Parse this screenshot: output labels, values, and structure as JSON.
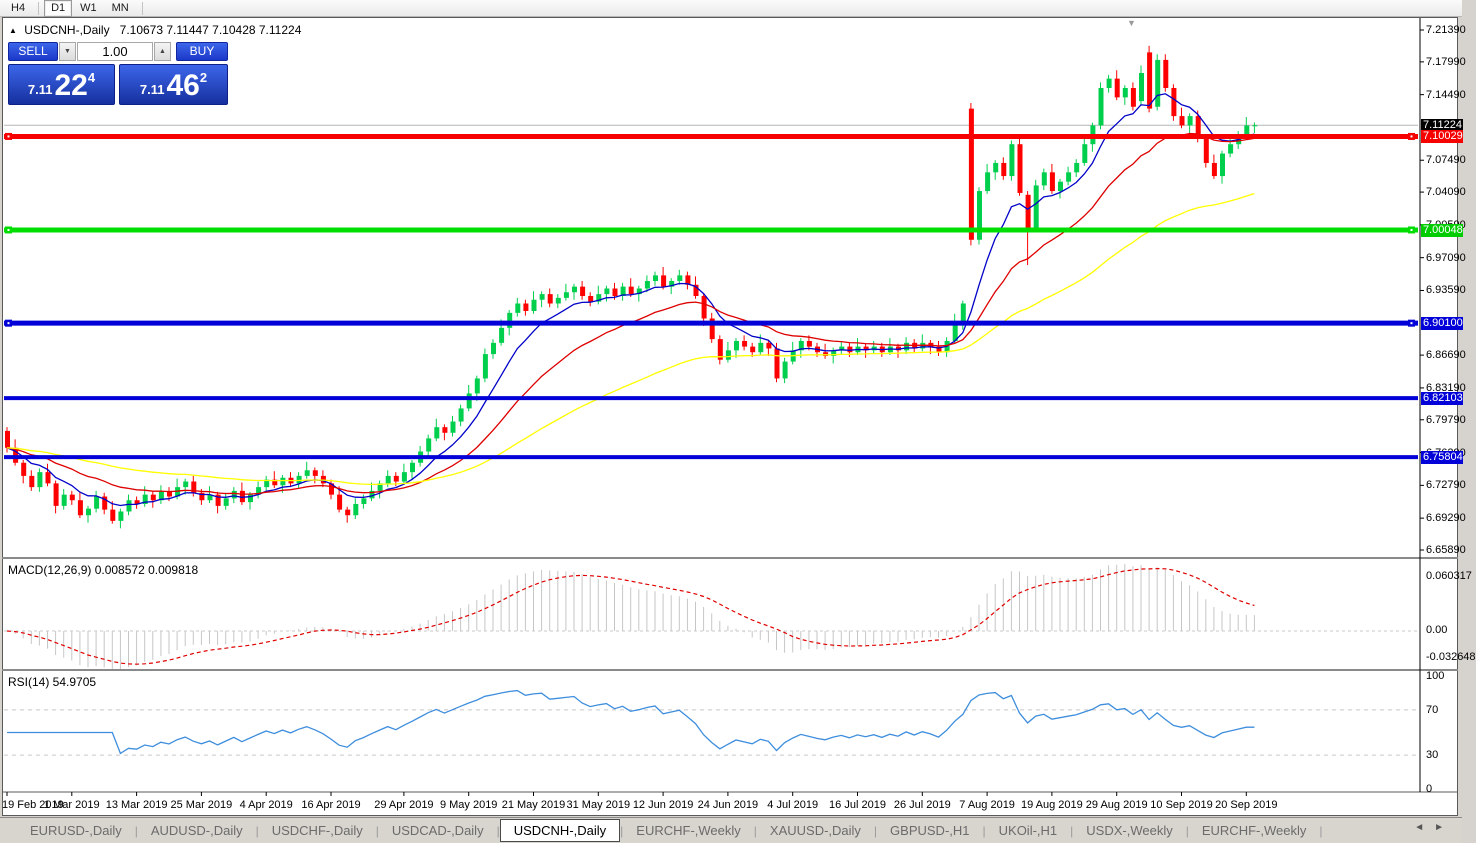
{
  "toolbar": {
    "timeframes": [
      "H4",
      "D1",
      "W1",
      "MN"
    ],
    "active_timeframe": "D1"
  },
  "icons": {
    "collapse_panel": "▲",
    "chart_shift_marker": "▼",
    "spinner_down": "▼",
    "spinner_up": "▲",
    "tab_scroll_left": "◄",
    "tab_scroll_right": "►"
  },
  "chart_title": {
    "symbol": "USDCNH-,Daily",
    "ohlc": "7.10673 7.11447 7.10428 7.11224"
  },
  "one_click": {
    "sell_label": "SELL",
    "buy_label": "BUY",
    "volume": "1.00",
    "sell_price": {
      "small": "7.11",
      "big": "22",
      "sup": "4"
    },
    "buy_price": {
      "small": "7.11",
      "big": "46",
      "sup": "2"
    }
  },
  "chart_data": {
    "type": "candlestick",
    "symbol": "USDCNH-",
    "timeframe": "Daily",
    "current_bar": {
      "open": "7.10673",
      "high": "7.11447",
      "low": "7.10428",
      "close": "7.11224"
    },
    "ylim": [
      6.6589,
      7.2139
    ],
    "bull_color": "#00cf4e",
    "bear_color": "#fe0000",
    "first_open": 6.786,
    "closes": [
      6.768,
      6.752,
      6.738,
      6.726,
      6.742,
      6.73,
      6.706,
      6.718,
      6.712,
      6.696,
      6.703,
      6.716,
      6.702,
      6.69,
      6.7,
      6.712,
      6.708,
      6.718,
      6.712,
      6.722,
      6.716,
      6.726,
      6.732,
      6.72,
      6.712,
      6.718,
      6.706,
      6.714,
      6.722,
      6.71,
      6.718,
      6.726,
      6.734,
      6.728,
      6.736,
      6.73,
      6.738,
      6.744,
      6.738,
      6.73,
      6.718,
      6.702,
      6.696,
      6.708,
      6.714,
      6.722,
      6.73,
      6.738,
      6.732,
      6.742,
      6.752,
      6.764,
      6.778,
      6.79,
      6.784,
      6.796,
      6.81,
      6.826,
      6.842,
      6.868,
      6.88,
      6.896,
      6.912,
      6.922,
      6.914,
      6.926,
      6.932,
      6.922,
      6.928,
      6.934,
      6.94,
      6.93,
      6.924,
      6.932,
      6.938,
      6.93,
      6.94,
      6.932,
      6.938,
      6.946,
      6.952,
      6.94,
      6.946,
      6.952,
      6.942,
      6.93,
      6.906,
      6.884,
      6.862,
      6.872,
      6.882,
      6.876,
      6.87,
      6.88,
      6.874,
      6.842,
      6.86,
      6.872,
      6.882,
      6.876,
      6.87,
      6.866,
      6.872,
      6.876,
      6.87,
      6.876,
      6.872,
      6.876,
      6.87,
      6.876,
      6.872,
      6.88,
      6.874,
      6.88,
      6.876,
      6.87,
      6.882,
      6.902,
      6.922,
      6.99,
      7.042,
      7.062,
      7.072,
      7.058,
      7.092,
      7.04,
      7.002,
      7.048,
      7.062,
      7.042,
      7.052,
      7.062,
      7.072,
      7.092,
      7.112,
      7.152,
      7.162,
      7.142,
      7.152,
      7.132,
      7.168,
      7.13,
      7.182,
      7.152,
      7.122,
      7.112,
      7.122,
      7.098,
      7.072,
      7.058,
      7.082,
      7.092,
      7.102,
      7.112,
      7.1122
    ],
    "overrides": {
      "119": [
        7.13,
        7.136,
        6.984,
        6.99
      ],
      "126": [
        7.038,
        7.042,
        6.963,
        7.002
      ],
      "140": [
        7.138,
        7.176,
        7.134,
        7.168
      ],
      "141": [
        7.19,
        7.197,
        7.126,
        7.13
      ],
      "142": [
        7.132,
        7.188,
        7.128,
        7.182
      ]
    },
    "wick_high_pattern": [
      0.004,
      0.009,
      0.003,
      0.006
    ],
    "wick_low_pattern": [
      0.005,
      0.003,
      0.008,
      0.004
    ],
    "moving_averages": [
      {
        "name": "ma-fast",
        "period": 8,
        "color": "#0202c8"
      },
      {
        "name": "ma-mid",
        "period": 21,
        "color": "#de0000"
      },
      {
        "name": "ma-slow",
        "period": 55,
        "color": "#ffff00"
      }
    ],
    "current_price_line": {
      "price": 7.11224,
      "color": "#b6b6b6"
    },
    "horizontal_lines": [
      {
        "price": 7.10029,
        "color": "#f60000",
        "width": 5,
        "handles": true
      },
      {
        "price": 7.00048,
        "color": "#00dd00",
        "width": 5,
        "handles": true
      },
      {
        "price": 6.901,
        "color": "#0202d8",
        "width": 5,
        "handles": true
      },
      {
        "price": 6.82103,
        "color": "#0202d8",
        "width": 4,
        "handles": false
      },
      {
        "price": 6.75804,
        "color": "#0202d8",
        "width": 4,
        "handles": false
      }
    ],
    "price_axis_labels": [
      "7.21390",
      "7.17990",
      "7.14490",
      "7.07490",
      "7.04090",
      "7.00590",
      "6.97090",
      "6.93590",
      "6.86690",
      "6.83190",
      "6.79790",
      "6.76290",
      "6.72790",
      "6.69290",
      "6.65890"
    ],
    "price_badges": [
      {
        "value": 7.11224,
        "label": "7.11224",
        "bg": "#000000"
      },
      {
        "value": 7.10029,
        "label": "7.10029",
        "bg": "#f60000"
      },
      {
        "value": 7.00048,
        "label": "7.00048",
        "bg": "#00cc00"
      },
      {
        "value": 6.901,
        "label": "6.90100",
        "bg": "#0202d8"
      },
      {
        "value": 6.82103,
        "label": "6.82103",
        "bg": "#0202d8"
      },
      {
        "value": 6.75804,
        "label": "6.75804",
        "bg": "#0202d8"
      }
    ],
    "x_ticks": [
      {
        "index": 0,
        "label": "19 Feb 2019"
      },
      {
        "index": 8,
        "label": "1 Mar 2019"
      },
      {
        "index": 16,
        "label": "13 Mar 2019"
      },
      {
        "index": 24,
        "label": "25 Mar 2019"
      },
      {
        "index": 32,
        "label": "4 Apr 2019"
      },
      {
        "index": 40,
        "label": "16 Apr 2019"
      },
      {
        "index": 49,
        "label": "29 Apr 2019"
      },
      {
        "index": 57,
        "label": "9 May 2019"
      },
      {
        "index": 65,
        "label": "21 May 2019"
      },
      {
        "index": 73,
        "label": "31 May 2019"
      },
      {
        "index": 81,
        "label": "12 Jun 2019"
      },
      {
        "index": 89,
        "label": "24 Jun 2019"
      },
      {
        "index": 97,
        "label": "4 Jul 2019"
      },
      {
        "index": 105,
        "label": "16 Jul 2019"
      },
      {
        "index": 113,
        "label": "26 Jul 2019"
      },
      {
        "index": 121,
        "label": "7 Aug 2019"
      },
      {
        "index": 129,
        "label": "19 Aug 2019"
      },
      {
        "index": 137,
        "label": "29 Aug 2019"
      },
      {
        "index": 145,
        "label": "10 Sep 2019"
      },
      {
        "index": 153,
        "label": "20 Sep 2019"
      }
    ],
    "macd": {
      "label": "MACD(12,26,9) 0.008572 0.009818",
      "fast": 12,
      "slow": 26,
      "signal": 9,
      "axis_labels": [
        {
          "text": "0.060317",
          "y": 571
        },
        {
          "text": "0.00",
          "y": 625
        },
        {
          "text": "-0.032648",
          "y": 652
        }
      ],
      "histogram_color": "#c6c6c6",
      "signal_color": "#e00000"
    },
    "rsi": {
      "label": "RSI(14) 54.9705",
      "period": 14,
      "levels": [
        100,
        70,
        30,
        0
      ],
      "dashed_levels": [
        70,
        30
      ],
      "color": "#3e8edd"
    }
  },
  "tabs": {
    "items": [
      "EURUSD-,Daily",
      "AUDUSD-,Daily",
      "USDCHF-,Daily",
      "USDCAD-,Daily",
      "USDCNH-,Daily",
      "EURCHF-,Weekly",
      "XAUUSD-,Daily",
      "GBPUSD-,H1",
      "UKOil-,H1",
      "USDX-,Weekly",
      "EURCHF-,Weekly"
    ],
    "active_index": 4
  }
}
